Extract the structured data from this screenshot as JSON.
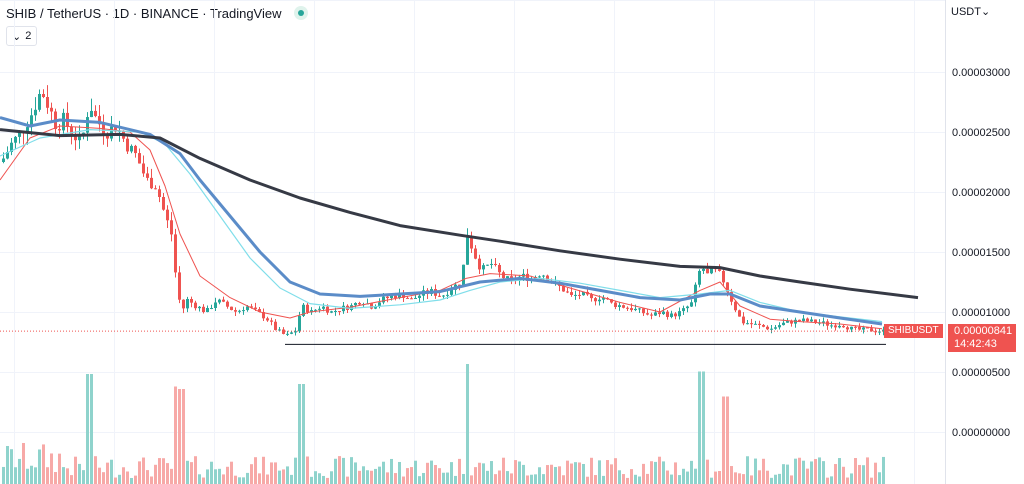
{
  "header": {
    "title": "SHIB / TetherUS · 1D · BINANCE · TradingView",
    "indicator_count": "2",
    "chevron_glyph": "⌄"
  },
  "axis": {
    "currency": "USDT",
    "currency_chevron": "⌄",
    "price_ticks": [
      "0.00003000",
      "0.00002500",
      "0.00002000",
      "0.00001500",
      "0.00001000",
      "0.00000500",
      "0.00000000"
    ]
  },
  "last_price": {
    "symbol": "SHIBUSDT",
    "price": "0.00000841",
    "countdown": "14:42:43"
  },
  "colors": {
    "up": "#26a69a",
    "down": "#ef5350",
    "up_volume": "#8fd3cc",
    "down_volume": "#f7a9a7",
    "ma_fast": "#ef5350",
    "ma_medium": "#80deea",
    "ma_slow": "#5b8cc8",
    "ma_long": "#363a45",
    "grid": "#f0f3fa"
  },
  "chart_data": {
    "type": "candlestick",
    "title": "SHIB / TetherUS · 1D · BINANCE · TradingView",
    "yunit": "USDT",
    "ylim": [
      7.8e-06,
      3.15e-05
    ],
    "grid": true,
    "overlays": [
      "moving averages x4",
      "horizontal support line"
    ],
    "last_price": 8.41e-06,
    "support_level": 7.3e-06,
    "close_path": [
      [
        0,
        2.25e-05
      ],
      [
        10,
        2.4e-05
      ],
      [
        20,
        2.5e-05
      ],
      [
        30,
        2.65e-05
      ],
      [
        40,
        2.85e-05
      ],
      [
        48,
        2.7e-05
      ],
      [
        55,
        2.55e-05
      ],
      [
        62,
        2.6e-05
      ],
      [
        70,
        2.5e-05
      ],
      [
        80,
        2.4e-05
      ],
      [
        88,
        2.75e-05
      ],
      [
        95,
        2.6e-05
      ],
      [
        105,
        2.5e-05
      ],
      [
        115,
        2.55e-05
      ],
      [
        125,
        2.4e-05
      ],
      [
        135,
        2.3e-05
      ],
      [
        145,
        2.1e-05
      ],
      [
        155,
        2.05e-05
      ],
      [
        162,
        1.85e-05
      ],
      [
        170,
        1.65e-05
      ],
      [
        175,
        1.25e-05
      ],
      [
        180,
        1e-05
      ],
      [
        186,
        1.1e-05
      ],
      [
        195,
        1.05e-05
      ],
      [
        205,
        1e-05
      ],
      [
        215,
        1.1e-05
      ],
      [
        225,
        1.05e-05
      ],
      [
        235,
        1e-05
      ],
      [
        245,
        1.05e-05
      ],
      [
        255,
        1e-05
      ],
      [
        265,
        9.5e-06
      ],
      [
        275,
        8.5e-06
      ],
      [
        285,
        8e-06
      ],
      [
        295,
        8.5e-06
      ],
      [
        300,
        1.05e-05
      ],
      [
        310,
        1e-05
      ],
      [
        320,
        1.05e-05
      ],
      [
        330,
        1e-05
      ],
      [
        340,
        1.03e-05
      ],
      [
        350,
        1.05e-05
      ],
      [
        360,
        1.1e-05
      ],
      [
        370,
        1.05e-05
      ],
      [
        380,
        1.1e-05
      ],
      [
        390,
        1.13e-05
      ],
      [
        400,
        1.15e-05
      ],
      [
        410,
        1.1e-05
      ],
      [
        420,
        1.15e-05
      ],
      [
        430,
        1.17e-05
      ],
      [
        440,
        1.13e-05
      ],
      [
        450,
        1.2e-05
      ],
      [
        460,
        1.25e-05
      ],
      [
        466,
        1.65e-05
      ],
      [
        472,
        1.5e-05
      ],
      [
        480,
        1.35e-05
      ],
      [
        490,
        1.4e-05
      ],
      [
        500,
        1.3e-05
      ],
      [
        510,
        1.25e-05
      ],
      [
        520,
        1.3e-05
      ],
      [
        530,
        1.28e-05
      ],
      [
        540,
        1.33e-05
      ],
      [
        550,
        1.25e-05
      ],
      [
        560,
        1.2e-05
      ],
      [
        570,
        1.13e-05
      ],
      [
        580,
        1.15e-05
      ],
      [
        590,
        1.1e-05
      ],
      [
        600,
        1.13e-05
      ],
      [
        610,
        1.07e-05
      ],
      [
        620,
        1.05e-05
      ],
      [
        630,
        1.03e-05
      ],
      [
        640,
        1e-05
      ],
      [
        650,
        9.7e-06
      ],
      [
        660,
        1e-05
      ],
      [
        670,
        9.7e-06
      ],
      [
        680,
        1e-05
      ],
      [
        690,
        1.07e-05
      ],
      [
        700,
        1.4e-05
      ],
      [
        705,
        1.3e-05
      ],
      [
        712,
        1.35e-05
      ],
      [
        720,
        1.3e-05
      ],
      [
        730,
        1.1e-05
      ],
      [
        740,
        9.2e-06
      ],
      [
        750,
        9e-06
      ],
      [
        760,
        8.8e-06
      ],
      [
        770,
        8.6e-06
      ],
      [
        780,
        9e-06
      ],
      [
        790,
        9.2e-06
      ],
      [
        800,
        9.3e-06
      ],
      [
        810,
        9.2e-06
      ],
      [
        820,
        9.1e-06
      ],
      [
        830,
        8.9e-06
      ],
      [
        840,
        9e-06
      ],
      [
        850,
        8.6e-06
      ],
      [
        860,
        8.5e-06
      ],
      [
        870,
        8.5e-06
      ],
      [
        882,
        8.4e-06
      ]
    ],
    "moving_averages": [
      {
        "color_key": "ma_fast",
        "points": [
          [
            0,
            2.1e-05
          ],
          [
            30,
            2.45e-05
          ],
          [
            60,
            2.55e-05
          ],
          [
            100,
            2.53e-05
          ],
          [
            130,
            2.5e-05
          ],
          [
            150,
            2.35e-05
          ],
          [
            165,
            2.05e-05
          ],
          [
            180,
            1.65e-05
          ],
          [
            200,
            1.3e-05
          ],
          [
            230,
            1.12e-05
          ],
          [
            260,
            1e-05
          ],
          [
            290,
            9.5e-06
          ],
          [
            310,
            1e-05
          ],
          [
            350,
            1.04e-05
          ],
          [
            400,
            1.12e-05
          ],
          [
            440,
            1.18e-05
          ],
          [
            466,
            1.28e-05
          ],
          [
            490,
            1.32e-05
          ],
          [
            530,
            1.3e-05
          ],
          [
            570,
            1.2e-05
          ],
          [
            620,
            1.08e-05
          ],
          [
            660,
            1e-05
          ],
          [
            700,
            1.18e-05
          ],
          [
            720,
            1.25e-05
          ],
          [
            740,
            1.05e-05
          ],
          [
            770,
            9.4e-06
          ],
          [
            800,
            9.2e-06
          ],
          [
            840,
            9e-06
          ],
          [
            882,
            8.6e-06
          ]
        ]
      },
      {
        "color_key": "ma_medium",
        "points": [
          [
            0,
            2.3e-05
          ],
          [
            40,
            2.45e-05
          ],
          [
            90,
            2.52e-05
          ],
          [
            140,
            2.5e-05
          ],
          [
            165,
            2.4e-05
          ],
          [
            190,
            2.15e-05
          ],
          [
            220,
            1.8e-05
          ],
          [
            250,
            1.45e-05
          ],
          [
            280,
            1.2e-05
          ],
          [
            310,
            1.07e-05
          ],
          [
            350,
            1.03e-05
          ],
          [
            400,
            1.06e-05
          ],
          [
            440,
            1.1e-05
          ],
          [
            470,
            1.18e-05
          ],
          [
            500,
            1.25e-05
          ],
          [
            540,
            1.28e-05
          ],
          [
            580,
            1.24e-05
          ],
          [
            620,
            1.18e-05
          ],
          [
            660,
            1.12e-05
          ],
          [
            700,
            1.15e-05
          ],
          [
            730,
            1.18e-05
          ],
          [
            760,
            1.08e-05
          ],
          [
            800,
            1e-05
          ],
          [
            840,
            9.6e-06
          ],
          [
            882,
            9.2e-06
          ]
        ]
      },
      {
        "color_key": "ma_slow",
        "points": [
          [
            0,
            2.62e-05
          ],
          [
            30,
            2.55e-05
          ],
          [
            60,
            2.6e-05
          ],
          [
            100,
            2.58e-05
          ],
          [
            150,
            2.48e-05
          ],
          [
            180,
            2.32e-05
          ],
          [
            200,
            2.1e-05
          ],
          [
            230,
            1.8e-05
          ],
          [
            260,
            1.5e-05
          ],
          [
            290,
            1.25e-05
          ],
          [
            320,
            1.15e-05
          ],
          [
            360,
            1.13e-05
          ],
          [
            400,
            1.15e-05
          ],
          [
            440,
            1.17e-05
          ],
          [
            480,
            1.25e-05
          ],
          [
            520,
            1.28e-05
          ],
          [
            560,
            1.24e-05
          ],
          [
            600,
            1.18e-05
          ],
          [
            640,
            1.12e-05
          ],
          [
            680,
            1.1e-05
          ],
          [
            710,
            1.15e-05
          ],
          [
            730,
            1.15e-05
          ],
          [
            760,
            1.05e-05
          ],
          [
            800,
            1e-05
          ],
          [
            840,
            9.5e-06
          ],
          [
            882,
            9e-06
          ]
        ]
      },
      {
        "color_key": "ma_long",
        "points": [
          [
            0,
            2.52e-05
          ],
          [
            60,
            2.47e-05
          ],
          [
            120,
            2.48e-05
          ],
          [
            160,
            2.45e-05
          ],
          [
            200,
            2.28e-05
          ],
          [
            250,
            2.1e-05
          ],
          [
            300,
            1.95e-05
          ],
          [
            350,
            1.83e-05
          ],
          [
            400,
            1.72e-05
          ],
          [
            460,
            1.64e-05
          ],
          [
            500,
            1.59e-05
          ],
          [
            560,
            1.51e-05
          ],
          [
            620,
            1.44e-05
          ],
          [
            680,
            1.38e-05
          ],
          [
            720,
            1.37e-05
          ],
          [
            760,
            1.3e-05
          ],
          [
            800,
            1.25e-05
          ],
          [
            850,
            1.19e-05
          ],
          [
            918,
            1.12e-05
          ]
        ]
      }
    ]
  }
}
